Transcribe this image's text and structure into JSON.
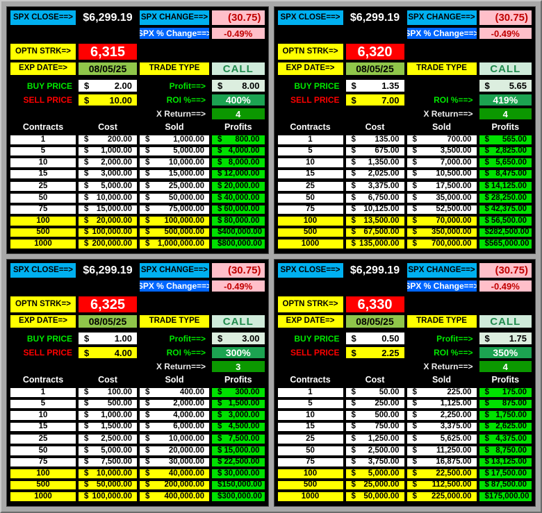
{
  "colors": {
    "label_cyan": "#00B0F0",
    "label_blue": "#0066FF",
    "negative_pink": "#FFBFC9",
    "negative_red": "#C00000",
    "label_yellow": "#FFFF00",
    "strike_red": "#FF0000",
    "date_green": "#90C64A",
    "call_pale_green": "#CFEBDA",
    "lime_text": "#00E800",
    "profit_pale_green": "#DCEEDF",
    "roi_green": "#1CA351",
    "x_return_green": "#0B9800",
    "profits_cell_green": "#00E100",
    "highlight_yellow": "#FFFF00",
    "panel_black": "#000000",
    "frame_gray": "#A8A8A8"
  },
  "quadrants": [
    {
      "spx_close_label": "SPX CLOSE==>",
      "spx_close": "$6,299.19",
      "spx_change_label": "SPX CHANGE==>",
      "spx_change": "(30.75)",
      "spx_pct_label": "SPX % Change==>",
      "spx_pct": "-0.49%",
      "strike_label": "OPTN STRK=>",
      "strike": "6,315",
      "exp_label": "EXP DATE=>",
      "exp_date": "08/05/25",
      "trade_type_label": "TRADE TYPE",
      "trade_type": "CALL",
      "buy_label": "BUY PRICE",
      "buy_price": "2.00",
      "sell_label": "SELL PRICE",
      "sell_price": "10.00",
      "profit_label": "Profit==>",
      "profit": "8.00",
      "roi_label": "ROI %==>",
      "roi": "400%",
      "xreturn_label": "X Return==>",
      "xreturn": "4",
      "table": {
        "headers": [
          "Contracts",
          "Cost",
          "Sold",
          "Profits"
        ],
        "rows": [
          {
            "contracts": "1",
            "cost": "200.00",
            "sold": "1,000.00",
            "profit": "800.00",
            "hl": false,
            "gap": false
          },
          {
            "contracts": "5",
            "cost": "1,000.00",
            "sold": "5,000.00",
            "profit": "4,000.00",
            "hl": false,
            "gap": false
          },
          {
            "contracts": "10",
            "cost": "2,000.00",
            "sold": "10,000.00",
            "profit": "8,000.00",
            "hl": false,
            "gap": false
          },
          {
            "contracts": "15",
            "cost": "3,000.00",
            "sold": "15,000.00",
            "profit": "12,000.00",
            "hl": false,
            "gap": false
          },
          {
            "contracts": "25",
            "cost": "5,000.00",
            "sold": "25,000.00",
            "profit": "20,000.00",
            "hl": false,
            "gap": true
          },
          {
            "contracts": "50",
            "cost": "10,000.00",
            "sold": "50,000.00",
            "profit": "40,000.00",
            "hl": false,
            "gap": false
          },
          {
            "contracts": "75",
            "cost": "15,000.00",
            "sold": "75,000.00",
            "profit": "60,000.00",
            "hl": false,
            "gap": false
          },
          {
            "contracts": "100",
            "cost": "20,000.00",
            "sold": "100,000.00",
            "profit": "80,000.00",
            "hl": true,
            "gap": false
          },
          {
            "contracts": "500",
            "cost": "100,000.00",
            "sold": "500,000.00",
            "profit": "400,000.00",
            "hl": true,
            "gap": false
          },
          {
            "contracts": "1000",
            "cost": "200,000.00",
            "sold": "1,000,000.00",
            "profit": "800,000.00",
            "hl": true,
            "gap": false
          }
        ]
      }
    },
    {
      "spx_close_label": "SPX CLOSE==>",
      "spx_close": "$6,299.19",
      "spx_change_label": "SPX CHANGE==>",
      "spx_change": "(30.75)",
      "spx_pct_label": "SPX % Change==>",
      "spx_pct": "-0.49%",
      "strike_label": "OPTN STRK=>",
      "strike": "6,320",
      "exp_label": "EXP DATE=>",
      "exp_date": "08/05/25",
      "trade_type_label": "TRADE TYPE",
      "trade_type": "CALL",
      "buy_label": "BUY PRICE",
      "buy_price": "1.35",
      "sell_label": "SELL PRICE",
      "sell_price": "7.00",
      "profit_label": "",
      "profit": "5.65",
      "roi_label": "ROI %==>",
      "roi": "419%",
      "xreturn_label": "X Return==>",
      "xreturn": "4",
      "table": {
        "headers": [
          "Contracts",
          "Cost",
          "Sold",
          "Profits"
        ],
        "rows": [
          {
            "contracts": "1",
            "cost": "135.00",
            "sold": "700.00",
            "profit": "565.00",
            "hl": false,
            "gap": false
          },
          {
            "contracts": "5",
            "cost": "675.00",
            "sold": "3,500.00",
            "profit": "2,825.00",
            "hl": false,
            "gap": false
          },
          {
            "contracts": "10",
            "cost": "1,350.00",
            "sold": "7,000.00",
            "profit": "5,650.00",
            "hl": false,
            "gap": false
          },
          {
            "contracts": "15",
            "cost": "2,025.00",
            "sold": "10,500.00",
            "profit": "8,475.00",
            "hl": false,
            "gap": false
          },
          {
            "contracts": "25",
            "cost": "3,375.00",
            "sold": "17,500.00",
            "profit": "14,125.00",
            "hl": false,
            "gap": true
          },
          {
            "contracts": "50",
            "cost": "6,750.00",
            "sold": "35,000.00",
            "profit": "28,250.00",
            "hl": false,
            "gap": false
          },
          {
            "contracts": "75",
            "cost": "10,125.00",
            "sold": "52,500.00",
            "profit": "42,375.00",
            "hl": false,
            "gap": false
          },
          {
            "contracts": "100",
            "cost": "13,500.00",
            "sold": "70,000.00",
            "profit": "56,500.00",
            "hl": true,
            "gap": false
          },
          {
            "contracts": "500",
            "cost": "67,500.00",
            "sold": "350,000.00",
            "profit": "282,500.00",
            "hl": true,
            "gap": false
          },
          {
            "contracts": "1000",
            "cost": "135,000.00",
            "sold": "700,000.00",
            "profit": "565,000.00",
            "hl": true,
            "gap": false
          }
        ]
      }
    },
    {
      "spx_close_label": "SPX CLOSE==>",
      "spx_close": "$6,299.19",
      "spx_change_label": "SPX CHANGE==>",
      "spx_change": "(30.75)",
      "spx_pct_label": "SPX % Change==>",
      "spx_pct": "-0.49%",
      "strike_label": "OPTN STRK=>",
      "strike": "6,325",
      "exp_label": "EXP DATE=>",
      "exp_date": "08/05/25",
      "trade_type_label": "TRADE TYPE",
      "trade_type": "CALL",
      "buy_label": "BUY PRICE",
      "buy_price": "1.00",
      "sell_label": "SELL PRICE",
      "sell_price": "4.00",
      "profit_label": "Profit==>",
      "profit": "3.00",
      "roi_label": "ROI %==>",
      "roi": "300%",
      "xreturn_label": "X Return==>",
      "xreturn": "3",
      "table": {
        "headers": [
          "Contracts",
          "Cost",
          "Sold",
          "Profits"
        ],
        "rows": [
          {
            "contracts": "1",
            "cost": "100.00",
            "sold": "400.00",
            "profit": "300.00",
            "hl": false,
            "gap": false
          },
          {
            "contracts": "5",
            "cost": "500.00",
            "sold": "2,000.00",
            "profit": "1,500.00",
            "hl": false,
            "gap": false
          },
          {
            "contracts": "10",
            "cost": "1,000.00",
            "sold": "4,000.00",
            "profit": "3,000.00",
            "hl": false,
            "gap": false
          },
          {
            "contracts": "15",
            "cost": "1,500.00",
            "sold": "6,000.00",
            "profit": "4,500.00",
            "hl": false,
            "gap": false
          },
          {
            "contracts": "25",
            "cost": "2,500.00",
            "sold": "10,000.00",
            "profit": "7,500.00",
            "hl": false,
            "gap": true
          },
          {
            "contracts": "50",
            "cost": "5,000.00",
            "sold": "20,000.00",
            "profit": "15,000.00",
            "hl": false,
            "gap": false
          },
          {
            "contracts": "75",
            "cost": "7,500.00",
            "sold": "30,000.00",
            "profit": "22,500.00",
            "hl": false,
            "gap": false
          },
          {
            "contracts": "100",
            "cost": "10,000.00",
            "sold": "40,000.00",
            "profit": "30,000.00",
            "hl": true,
            "gap": false
          },
          {
            "contracts": "500",
            "cost": "50,000.00",
            "sold": "200,000.00",
            "profit": "150,000.00",
            "hl": true,
            "gap": false
          },
          {
            "contracts": "1000",
            "cost": "100,000.00",
            "sold": "400,000.00",
            "profit": "300,000.00",
            "hl": true,
            "gap": false
          }
        ]
      }
    },
    {
      "spx_close_label": "SPX CLOSE==>",
      "spx_close": "$6,299.19",
      "spx_change_label": "SPX CHANGE==>",
      "spx_change": "(30.75)",
      "spx_pct_label": "SPX % Change==>",
      "spx_pct": "-0.49%",
      "strike_label": "OPTN STRK=>",
      "strike": "6,330",
      "exp_label": "EXP DATE=>",
      "exp_date": "08/05/25",
      "trade_type_label": "TRADE TYPE",
      "trade_type": "CALL",
      "buy_label": "BUY PRICE",
      "buy_price": "0.50",
      "sell_label": "SELL PRICE",
      "sell_price": "2.25",
      "profit_label": "Profit==>",
      "profit": "1.75",
      "roi_label": "ROI %==>",
      "roi": "350%",
      "xreturn_label": "X Return==>",
      "xreturn": "4",
      "table": {
        "headers": [
          "Contracts",
          "Cost",
          "Sold",
          "Profits"
        ],
        "rows": [
          {
            "contracts": "1",
            "cost": "50.00",
            "sold": "225.00",
            "profit": "175.00",
            "hl": false,
            "gap": false
          },
          {
            "contracts": "5",
            "cost": "250.00",
            "sold": "1,125.00",
            "profit": "875.00",
            "hl": false,
            "gap": false
          },
          {
            "contracts": "10",
            "cost": "500.00",
            "sold": "2,250.00",
            "profit": "1,750.00",
            "hl": false,
            "gap": false
          },
          {
            "contracts": "15",
            "cost": "750.00",
            "sold": "3,375.00",
            "profit": "2,625.00",
            "hl": false,
            "gap": false
          },
          {
            "contracts": "25",
            "cost": "1,250.00",
            "sold": "5,625.00",
            "profit": "4,375.00",
            "hl": false,
            "gap": true
          },
          {
            "contracts": "50",
            "cost": "2,500.00",
            "sold": "11,250.00",
            "profit": "8,750.00",
            "hl": false,
            "gap": false
          },
          {
            "contracts": "75",
            "cost": "3,750.00",
            "sold": "16,875.00",
            "profit": "13,125.00",
            "hl": false,
            "gap": false
          },
          {
            "contracts": "100",
            "cost": "5,000.00",
            "sold": "22,500.00",
            "profit": "17,500.00",
            "hl": true,
            "gap": false
          },
          {
            "contracts": "500",
            "cost": "25,000.00",
            "sold": "112,500.00",
            "profit": "87,500.00",
            "hl": true,
            "gap": false
          },
          {
            "contracts": "1000",
            "cost": "50,000.00",
            "sold": "225,000.00",
            "profit": "175,000.00",
            "hl": true,
            "gap": false
          }
        ]
      }
    }
  ]
}
